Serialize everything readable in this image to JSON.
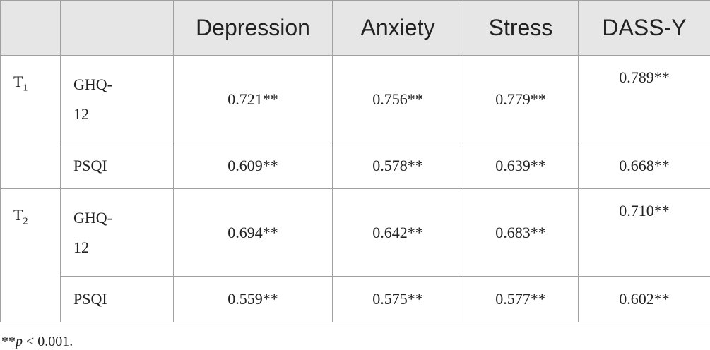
{
  "table": {
    "columns": [
      "Depression",
      "Anxiety",
      "Stress",
      "DASS-Y"
    ],
    "groups": [
      {
        "label": "T",
        "subscript": "1",
        "rows": [
          {
            "name": "GHQ-12",
            "values": [
              "0.721**",
              "0.756**",
              "0.779**",
              "0.789**"
            ]
          },
          {
            "name": "PSQI",
            "values": [
              "0.609**",
              "0.578**",
              "0.639**",
              "0.668**"
            ]
          }
        ]
      },
      {
        "label": "T",
        "subscript": "2",
        "rows": [
          {
            "name": "GHQ-12",
            "values": [
              "0.694**",
              "0.642**",
              "0.683**",
              "0.710**"
            ]
          },
          {
            "name": "PSQI",
            "values": [
              "0.559**",
              "0.575**",
              "0.577**",
              "0.602**"
            ]
          }
        ]
      }
    ]
  },
  "footnote": {
    "prefix": "**",
    "italic": "p",
    "rest": " < 0.001."
  }
}
